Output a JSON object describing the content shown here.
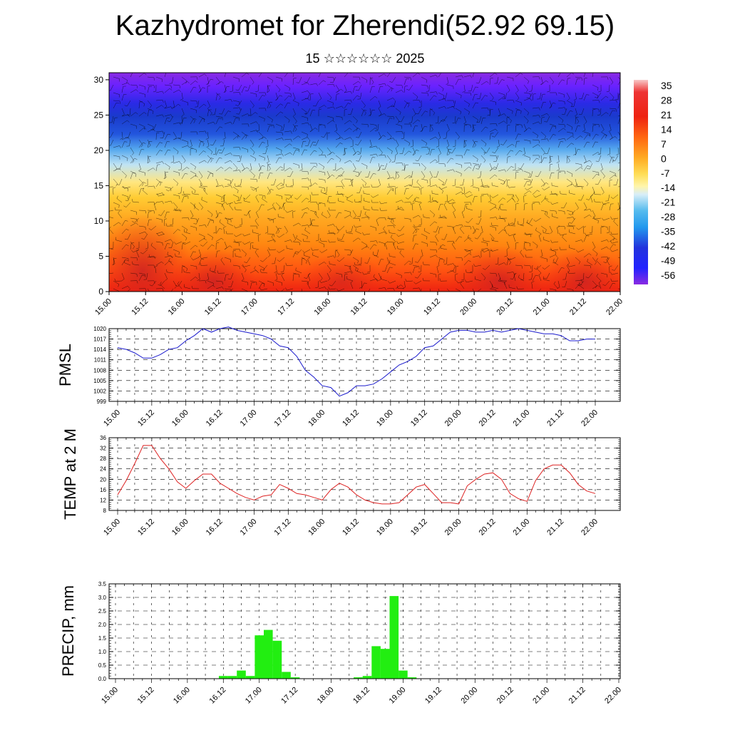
{
  "title": "Kazhydromet for Zherendi(52.92 69.15)",
  "subtitle": "15 ☆☆☆☆☆☆ 2025",
  "colors": {
    "pmsl_line": "#1a1acc",
    "temp_line": "#dd2222",
    "precip_bar": "#22ee11"
  },
  "chart_data": [
    {
      "type": "heatmap",
      "title": "",
      "x_ticks": [
        "15.00",
        "15.12",
        "16.00",
        "16.12",
        "17.00",
        "17.12",
        "18.00",
        "18.12",
        "19.00",
        "19.12",
        "20.00",
        "20.12",
        "21.00",
        "21.12",
        "22.00"
      ],
      "y_ticks": [
        0,
        5,
        10,
        15,
        20,
        25,
        30
      ],
      "ylim": [
        0,
        31
      ],
      "colorbar_labels": [
        "35",
        "28",
        "21",
        "14",
        "7",
        "0",
        "-7",
        "-14",
        "-21",
        "-28",
        "-35",
        "-42",
        "-49",
        "-56"
      ],
      "overlay": "wind barbs"
    },
    {
      "type": "line",
      "ylabel": "PMSL",
      "ylim": [
        999,
        1020
      ],
      "y_ticks": [
        "1020",
        "1017",
        "1014",
        "1011",
        "1008",
        "1005",
        "1002",
        "999"
      ],
      "x_ticks": [
        "15.00",
        "15.12",
        "16.00",
        "16.12",
        "17.00",
        "17.12",
        "18.00",
        "18.12",
        "19.00",
        "19.12",
        "20.00",
        "20.12",
        "21.00",
        "21.12",
        "22.00"
      ],
      "grid": true,
      "x": [
        0,
        3,
        6,
        9,
        12,
        15,
        18,
        21,
        24,
        27,
        30,
        33,
        36,
        39,
        42,
        45,
        48,
        51,
        54,
        57,
        60,
        63,
        66,
        69,
        72,
        75,
        78,
        81,
        84,
        87,
        90,
        93,
        96,
        99,
        102,
        105,
        108,
        111,
        114,
        117,
        120,
        123,
        126,
        129,
        132,
        135,
        138,
        141,
        144,
        147,
        150,
        153,
        156,
        159,
        162,
        165,
        168
      ],
      "values": [
        1014.5,
        1014,
        1013,
        1011.5,
        1011.5,
        1012.5,
        1014,
        1014.5,
        1016.5,
        1018,
        1020,
        1019,
        1020,
        1020.5,
        1019.5,
        1019,
        1018.5,
        1018,
        1017,
        1015,
        1014.5,
        1012,
        1008,
        1006,
        1003.5,
        1003,
        1000.5,
        1001.5,
        1003.5,
        1003.5,
        1004,
        1005.5,
        1007.5,
        1009.5,
        1010.5,
        1012,
        1014.5,
        1015,
        1017,
        1019,
        1019.5,
        1019.5,
        1019,
        1019,
        1019.5,
        1019,
        1019.5,
        1020,
        1019.5,
        1019,
        1018.5,
        1018.5,
        1018,
        1016.5,
        1016.5,
        1017,
        1017
      ]
    },
    {
      "type": "line",
      "ylabel": "TEMP at 2 M",
      "ylim": [
        8,
        36
      ],
      "y_ticks": [
        "36",
        "32",
        "28",
        "24",
        "20",
        "16",
        "12",
        "8"
      ],
      "x_ticks": [
        "15.00",
        "15.12",
        "16.00",
        "16.12",
        "17.00",
        "17.12",
        "18.00",
        "18.12",
        "19.00",
        "19.12",
        "20.00",
        "20.12",
        "21.00",
        "21.12",
        "22.00"
      ],
      "grid": true,
      "x": [
        0,
        3,
        6,
        9,
        12,
        15,
        18,
        21,
        24,
        27,
        30,
        33,
        36,
        39,
        42,
        45,
        48,
        51,
        54,
        57,
        60,
        63,
        66,
        69,
        72,
        75,
        78,
        81,
        84,
        87,
        90,
        93,
        96,
        99,
        102,
        105,
        108,
        111,
        114,
        117,
        120,
        123,
        126,
        129,
        132,
        135,
        138,
        141,
        144,
        147,
        150,
        153,
        156,
        159,
        162,
        165,
        168
      ],
      "values": [
        14,
        19.5,
        26,
        33,
        33,
        28,
        24,
        19,
        16.5,
        19.5,
        22,
        22,
        18.5,
        16.5,
        14.5,
        13,
        12,
        13.5,
        14,
        18,
        16.5,
        14.5,
        14,
        13,
        12,
        16,
        18.5,
        17,
        14,
        12,
        11,
        10.5,
        10.5,
        11,
        14,
        17,
        18,
        14.5,
        11,
        11,
        10.5,
        17.5,
        20,
        22,
        22.5,
        20,
        14.5,
        12.5,
        11.5,
        19.5,
        24,
        25.5,
        25.5,
        22.5,
        18,
        15.5,
        14.5
      ]
    },
    {
      "type": "bar",
      "ylabel": "PRECIP, mm",
      "ylim": [
        0,
        3.5
      ],
      "y_ticks": [
        "3.5",
        "3.0",
        "2.5",
        "2.0",
        "1.5",
        "1.0",
        "0.5",
        "0.0"
      ],
      "x_ticks": [
        "15.00",
        "15.12",
        "16.00",
        "16.12",
        "17.00",
        "17.12",
        "18.00",
        "18.12",
        "19.00",
        "19.12",
        "20.00",
        "20.12",
        "21.00",
        "21.12",
        "22.00"
      ],
      "grid": true,
      "x": [
        36,
        39,
        42,
        45,
        48,
        51,
        54,
        57,
        60,
        63,
        66,
        69,
        72,
        75,
        78,
        81,
        84,
        87,
        90,
        93,
        96,
        99,
        102
      ],
      "values": [
        0.1,
        0.1,
        0.3,
        0.1,
        1.6,
        1.8,
        1.4,
        0.25,
        0.05,
        0,
        0,
        0,
        0,
        0,
        0,
        0.05,
        0.1,
        1.2,
        1.1,
        3.05,
        0.3,
        0.05,
        0
      ]
    }
  ]
}
